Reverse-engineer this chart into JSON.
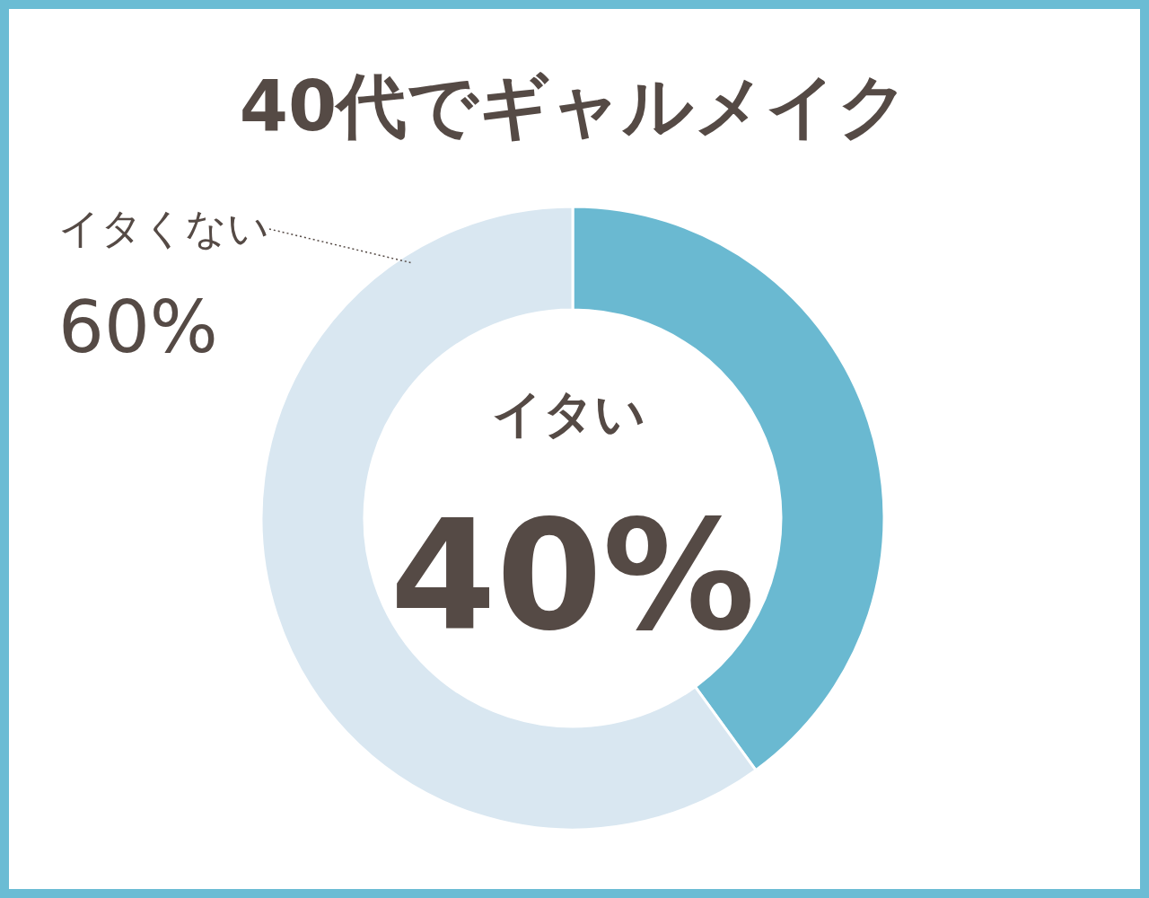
{
  "chart_data": {
    "type": "donut",
    "title": "40代でギャルメイク",
    "categories": [
      "イタい",
      "イタくない"
    ],
    "values": [
      40,
      60
    ],
    "colors": [
      "#6ab9d1",
      "#d9e7f1"
    ],
    "value_labels": [
      "40%",
      "60%"
    ]
  }
}
